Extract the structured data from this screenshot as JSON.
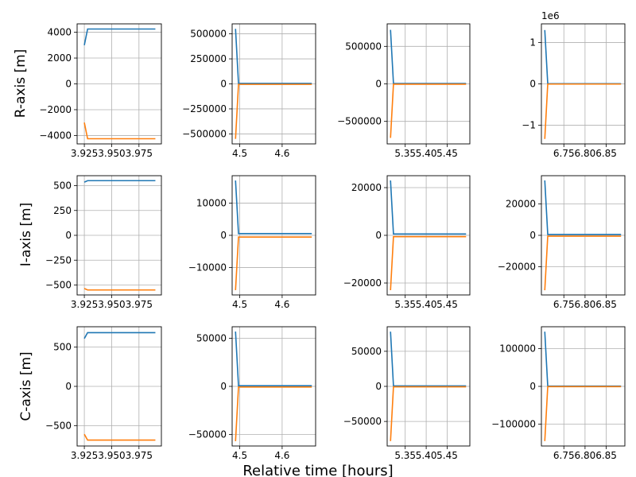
{
  "figure": {
    "xlabel": "Relative time [hours]",
    "row_labels": [
      "R-axis [m]",
      "I-axis [m]",
      "C-axis [m]"
    ]
  },
  "chart_data": [
    {
      "type": "line",
      "row": 0,
      "col": 0,
      "x": [
        3.925,
        3.928,
        3.99
      ],
      "series": [
        {
          "values": [
            3000,
            4250,
            4250
          ],
          "color": "#1f77b4"
        },
        {
          "values": [
            -3000,
            -4250,
            -4250
          ],
          "color": "#ff7f0e"
        }
      ],
      "xlim": [
        3.9184,
        3.9955
      ],
      "ylim": [
        -4650,
        4650
      ],
      "xticks": [
        3.925,
        3.95,
        3.975
      ],
      "xtick_labels": [
        "3.925",
        "3.950",
        "3.975"
      ],
      "yticks": [
        -4000,
        -2000,
        0,
        2000,
        4000
      ],
      "ytick_labels": [
        "−4000",
        "−2000",
        "0",
        "2000",
        "4000"
      ],
      "offset_text": "",
      "grid": true
    },
    {
      "type": "line",
      "row": 0,
      "col": 1,
      "x": [
        4.49,
        4.497,
        4.67
      ],
      "series": [
        {
          "values": [
            550000,
            5000,
            5000
          ],
          "color": "#1f77b4"
        },
        {
          "values": [
            -550000,
            -5000,
            -5000
          ],
          "color": "#ff7f0e"
        }
      ],
      "xlim": [
        4.482,
        4.679
      ],
      "ylim": [
        -600000,
        600000
      ],
      "xticks": [
        4.5,
        4.6
      ],
      "xtick_labels": [
        "4.5",
        "4.6"
      ],
      "yticks": [
        -500000,
        -250000,
        0,
        250000,
        500000
      ],
      "ytick_labels": [
        "−500000",
        "−250000",
        "0",
        "250000",
        "500000"
      ],
      "offset_text": "",
      "grid": true
    },
    {
      "type": "line",
      "row": 0,
      "col": 2,
      "x": [
        5.315,
        5.322,
        5.495
      ],
      "series": [
        {
          "values": [
            720000,
            5000,
            5000
          ],
          "color": "#1f77b4"
        },
        {
          "values": [
            -720000,
            -5000,
            -5000
          ],
          "color": "#ff7f0e"
        }
      ],
      "xlim": [
        5.307,
        5.504
      ],
      "ylim": [
        -800000,
        800000
      ],
      "xticks": [
        5.35,
        5.4,
        5.45
      ],
      "xtick_labels": [
        "5.35",
        "5.40",
        "5.45"
      ],
      "yticks": [
        -500000,
        0,
        500000
      ],
      "ytick_labels": [
        "−500000",
        "0",
        "500000"
      ],
      "offset_text": "",
      "grid": true
    },
    {
      "type": "line",
      "row": 0,
      "col": 3,
      "x": [
        6.705,
        6.712,
        6.885
      ],
      "series": [
        {
          "values": [
            1.3,
            0.005,
            0.005
          ],
          "color": "#1f77b4"
        },
        {
          "values": [
            -1.33,
            -0.005,
            -0.005
          ],
          "color": "#ff7f0e"
        }
      ],
      "xlim": [
        6.697,
        6.894
      ],
      "ylim": [
        -1.45,
        1.45
      ],
      "xticks": [
        6.75,
        6.8,
        6.85
      ],
      "xtick_labels": [
        "6.75",
        "6.80",
        "6.85"
      ],
      "yticks": [
        -1,
        0,
        1
      ],
      "ytick_labels": [
        "−1",
        "0",
        "1"
      ],
      "offset_text": "1e6",
      "grid": true
    },
    {
      "type": "line",
      "row": 1,
      "col": 0,
      "x": [
        3.925,
        3.928,
        3.99
      ],
      "series": [
        {
          "values": [
            535,
            550,
            550
          ],
          "color": "#1f77b4"
        },
        {
          "values": [
            -535,
            -550,
            -550
          ],
          "color": "#ff7f0e"
        }
      ],
      "xlim": [
        3.9184,
        3.9955
      ],
      "ylim": [
        -600,
        600
      ],
      "xticks": [
        3.925,
        3.95,
        3.975
      ],
      "xtick_labels": [
        "3.925",
        "3.950",
        "3.975"
      ],
      "yticks": [
        -500,
        -250,
        0,
        250,
        500
      ],
      "ytick_labels": [
        "−500",
        "−250",
        "0",
        "250",
        "500"
      ],
      "offset_text": "",
      "grid": true
    },
    {
      "type": "line",
      "row": 1,
      "col": 1,
      "x": [
        4.49,
        4.497,
        4.67
      ],
      "series": [
        {
          "values": [
            17000,
            550,
            550
          ],
          "color": "#1f77b4"
        },
        {
          "values": [
            -17000,
            -550,
            -550
          ],
          "color": "#ff7f0e"
        }
      ],
      "xlim": [
        4.482,
        4.679
      ],
      "ylim": [
        -18500,
        18500
      ],
      "xticks": [
        4.5,
        4.6
      ],
      "xtick_labels": [
        "4.5",
        "4.6"
      ],
      "yticks": [
        -10000,
        0,
        10000
      ],
      "ytick_labels": [
        "−10000",
        "0",
        "10000"
      ],
      "offset_text": "",
      "grid": true
    },
    {
      "type": "line",
      "row": 1,
      "col": 2,
      "x": [
        5.315,
        5.322,
        5.495
      ],
      "series": [
        {
          "values": [
            23000,
            550,
            550
          ],
          "color": "#1f77b4"
        },
        {
          "values": [
            -23000,
            -550,
            -550
          ],
          "color": "#ff7f0e"
        }
      ],
      "xlim": [
        5.307,
        5.504
      ],
      "ylim": [
        -25000,
        25000
      ],
      "xticks": [
        5.35,
        5.4,
        5.45
      ],
      "xtick_labels": [
        "5.35",
        "5.40",
        "5.45"
      ],
      "yticks": [
        -20000,
        0,
        20000
      ],
      "ytick_labels": [
        "−20000",
        "0",
        "20000"
      ],
      "offset_text": "",
      "grid": true
    },
    {
      "type": "line",
      "row": 1,
      "col": 3,
      "x": [
        6.705,
        6.712,
        6.885
      ],
      "series": [
        {
          "values": [
            35000,
            550,
            550
          ],
          "color": "#1f77b4"
        },
        {
          "values": [
            -35000,
            -550,
            -550
          ],
          "color": "#ff7f0e"
        }
      ],
      "xlim": [
        6.697,
        6.894
      ],
      "ylim": [
        -38000,
        38000
      ],
      "xticks": [
        6.75,
        6.8,
        6.85
      ],
      "xtick_labels": [
        "6.75",
        "6.80",
        "6.85"
      ],
      "yticks": [
        -20000,
        0,
        20000
      ],
      "ytick_labels": [
        "−20000",
        "0",
        "20000"
      ],
      "offset_text": "",
      "grid": true
    },
    {
      "type": "line",
      "row": 2,
      "col": 0,
      "x": [
        3.925,
        3.928,
        3.99
      ],
      "series": [
        {
          "values": [
            610,
            685,
            685
          ],
          "color": "#1f77b4"
        },
        {
          "values": [
            -610,
            -685,
            -685
          ],
          "color": "#ff7f0e"
        }
      ],
      "xlim": [
        3.9184,
        3.9955
      ],
      "ylim": [
        -760,
        760
      ],
      "xticks": [
        3.925,
        3.95,
        3.975
      ],
      "xtick_labels": [
        "3.925",
        "3.950",
        "3.975"
      ],
      "yticks": [
        -500,
        0,
        500
      ],
      "ytick_labels": [
        "−500",
        "0",
        "500"
      ],
      "offset_text": "",
      "grid": true
    },
    {
      "type": "line",
      "row": 2,
      "col": 1,
      "x": [
        4.49,
        4.497,
        4.67
      ],
      "series": [
        {
          "values": [
            57000,
            685,
            685
          ],
          "color": "#1f77b4"
        },
        {
          "values": [
            -57000,
            -685,
            -685
          ],
          "color": "#ff7f0e"
        }
      ],
      "xlim": [
        4.482,
        4.679
      ],
      "ylim": [
        -62000,
        62000
      ],
      "xticks": [
        4.5,
        4.6
      ],
      "xtick_labels": [
        "4.5",
        "4.6"
      ],
      "yticks": [
        -50000,
        0,
        50000
      ],
      "ytick_labels": [
        "−50000",
        "0",
        "50000"
      ],
      "offset_text": "",
      "grid": true
    },
    {
      "type": "line",
      "row": 2,
      "col": 2,
      "x": [
        5.315,
        5.322,
        5.495
      ],
      "series": [
        {
          "values": [
            78000,
            685,
            685
          ],
          "color": "#1f77b4"
        },
        {
          "values": [
            -78000,
            -685,
            -685
          ],
          "color": "#ff7f0e"
        }
      ],
      "xlim": [
        5.307,
        5.504
      ],
      "ylim": [
        -85000,
        85000
      ],
      "xticks": [
        5.35,
        5.4,
        5.45
      ],
      "xtick_labels": [
        "5.35",
        "5.40",
        "5.45"
      ],
      "yticks": [
        -50000,
        0,
        50000
      ],
      "ytick_labels": [
        "−50000",
        "0",
        "50000"
      ],
      "offset_text": "",
      "grid": true
    },
    {
      "type": "line",
      "row": 2,
      "col": 3,
      "x": [
        6.705,
        6.712,
        6.885
      ],
      "series": [
        {
          "values": [
            145000,
            685,
            685
          ],
          "color": "#1f77b4"
        },
        {
          "values": [
            -145000,
            -685,
            -685
          ],
          "color": "#ff7f0e"
        }
      ],
      "xlim": [
        6.697,
        6.894
      ],
      "ylim": [
        -158000,
        158000
      ],
      "xticks": [
        6.75,
        6.8,
        6.85
      ],
      "xtick_labels": [
        "6.75",
        "6.80",
        "6.85"
      ],
      "yticks": [
        -100000,
        0,
        100000
      ],
      "ytick_labels": [
        "−100000",
        "0",
        "100000"
      ],
      "offset_text": "",
      "grid": true
    }
  ]
}
